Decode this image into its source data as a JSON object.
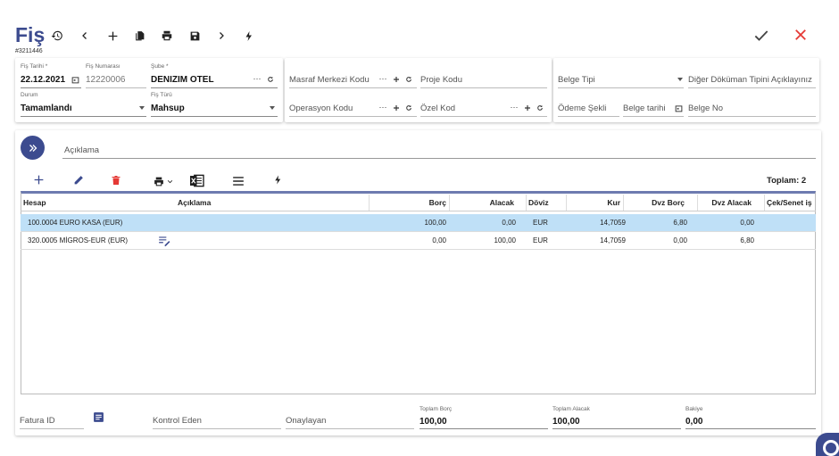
{
  "header": {
    "title": "Fiş",
    "doc_number": "#3211446",
    "toolbar": [
      "history-icon",
      "back-icon",
      "add-icon",
      "copy-icon",
      "print-icon",
      "save-icon",
      "forward-icon",
      "flash-icon"
    ]
  },
  "form": {
    "fis_tarihi": {
      "label": "Fiş Tarihi *",
      "value": "22.12.2021"
    },
    "fis_numarasi": {
      "label": "Fiş Numarası",
      "value": "12220006"
    },
    "sube": {
      "label": "Şube *",
      "value": "DENIZIM OTEL"
    },
    "durum": {
      "label": "Durum",
      "value": "Tamamlandı"
    },
    "fis_turu": {
      "label": "Fiş Türü",
      "value": "Mahsup"
    },
    "masraf_merkezi": "Masraf Merkezi Kodu",
    "proje_kodu": "Proje Kodu",
    "operasyon_kodu": "Operasyon Kodu",
    "ozel_kod": "Özel Kod",
    "belge_tipi": "Belge Tipi",
    "diger_dokuman": "Diğer Döküman Tipini Açıklayınız",
    "odeme_sekli": "Ödeme Şekli",
    "belge_tarihi": "Belge tarihi",
    "belge_no": "Belge No",
    "dots": "···"
  },
  "main": {
    "aciklama_placeholder": "Açıklama",
    "toplam": "Toplam: 2"
  },
  "grid": {
    "columns": [
      "Hesap",
      "Açıklama",
      "Borç",
      "Alacak",
      "Döviz",
      "Kur",
      "Dvz Borç",
      "Dvz Alacak",
      "Çek/Senet iş"
    ],
    "rows": [
      {
        "hesap": "100.0004 EURO KASA (EUR)",
        "aciklama": "",
        "borc": "100,00",
        "alacak": "0,00",
        "doviz": "EUR",
        "kur": "14,7059",
        "dvz_borc": "6,80",
        "dvz_alacak": "0,00",
        "selected": true
      },
      {
        "hesap": "320.0005 MİGROS-EUR (EUR)",
        "aciklama": "",
        "borc": "0,00",
        "alacak": "100,00",
        "doviz": "EUR",
        "kur": "14,7059",
        "dvz_borc": "0,00",
        "dvz_alacak": "6,80",
        "selected": false
      }
    ]
  },
  "footer": {
    "fatura_id": "Fatura ID",
    "kontrol_eden": "Kontrol Eden",
    "onaylayan": "Onaylayan",
    "toplam_borc": {
      "label": "Toplam Borç",
      "value": "100,00"
    },
    "toplam_alacak": {
      "label": "Toplam Alacak",
      "value": "100,00"
    },
    "bakiye": {
      "label": "Bakiye",
      "value": "0,00"
    }
  },
  "colors": {
    "accent": "#3c4b8f",
    "selected_row": "#bfe0f7",
    "delete": "#e53935",
    "close": "#e53935",
    "excel": "#1d1d1d"
  }
}
